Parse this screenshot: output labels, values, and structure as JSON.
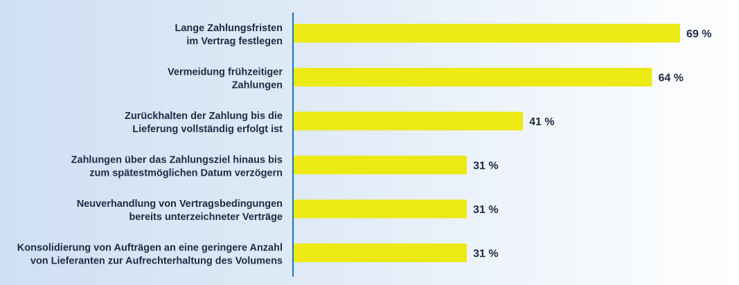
{
  "chart_data": {
    "type": "bar",
    "orientation": "horizontal",
    "categories": [
      [
        "Lange Zahlungsfristen",
        "im Vertrag festlegen"
      ],
      [
        "Vermeidung frühzeitiger",
        "Zahlungen"
      ],
      [
        "Zurückhalten der Zahlung bis die",
        "Lieferung vollständig erfolgt ist"
      ],
      [
        "Zahlungen über das Zahlungsziel hinaus bis",
        "zum spätestmöglichen Datum verzögern"
      ],
      [
        "Neuverhandlung von Vertragsbedingungen",
        "bereits unterzeichneter Verträge"
      ],
      [
        "Konsolidierung von Aufträgen an eine geringere Anzahl",
        "von Lieferanten zur Aufrechterhaltung des Volumens"
      ]
    ],
    "values": [
      69,
      64,
      41,
      31,
      31,
      31
    ],
    "value_labels": [
      "69 %",
      "64 %",
      "41 %",
      "31 %",
      "31 %",
      "31 %"
    ],
    "xlim": [
      0,
      100
    ],
    "grid": false,
    "legend": "none"
  },
  "colors": {
    "bar": "#ede915",
    "axis": "#1f6fbf",
    "text": "#1f2a44"
  }
}
